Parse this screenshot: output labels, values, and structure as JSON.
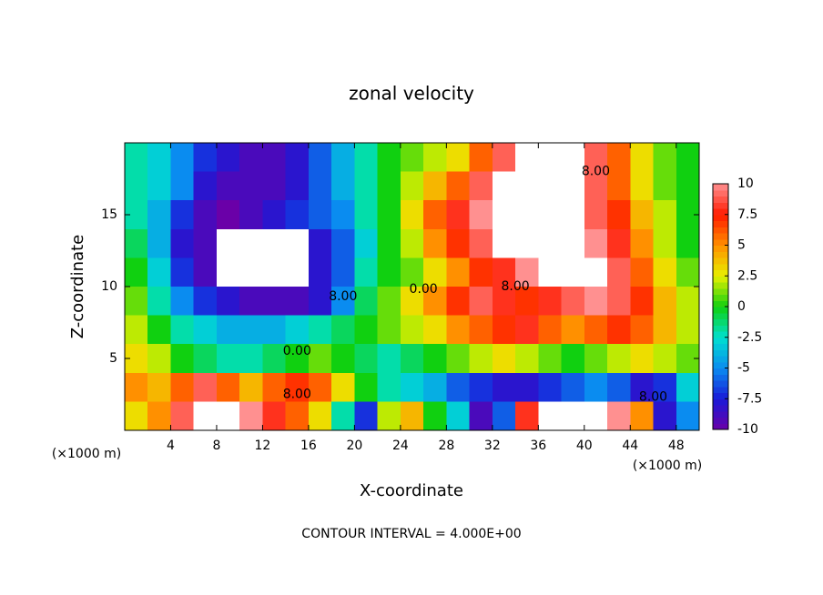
{
  "chart_data": {
    "type": "heatmap",
    "title": "zonal velocity",
    "x_label": "X-coordinate",
    "y_label": "Z-coordinate",
    "x_unit": "(×1000 m)",
    "y_unit": "(×1000 m)",
    "footer": "CONTOUR INTERVAL = 4.000E+00",
    "x": [
      1,
      3,
      5,
      7,
      9,
      11,
      13,
      15,
      17,
      19,
      21,
      23,
      25,
      27,
      29,
      31,
      33,
      35,
      37,
      39,
      41,
      43,
      45,
      47,
      49
    ],
    "y": [
      19,
      17,
      15,
      13,
      11,
      9,
      7,
      5,
      3,
      1
    ],
    "z": [
      [
        -2,
        -3,
        -5,
        -7,
        -8,
        -9,
        -9,
        -8,
        -6,
        -4,
        -2,
        0,
        1,
        2,
        3,
        6,
        9,
        11,
        12,
        11,
        9,
        6,
        3,
        1,
        0
      ],
      [
        -2,
        -3,
        -5,
        -8,
        -9,
        -9,
        -9,
        -8,
        -6,
        -4,
        -2,
        0,
        2,
        4,
        6,
        9,
        11,
        12,
        12,
        11,
        9,
        6,
        3,
        1,
        0
      ],
      [
        -2,
        -4,
        -7,
        -9,
        -10,
        -9,
        -8,
        -7,
        -6,
        -5,
        -2,
        0,
        3,
        6,
        8,
        10,
        12,
        12,
        12,
        11,
        9,
        7,
        4,
        2,
        0
      ],
      [
        -1,
        -4,
        -8,
        -9,
        11,
        12,
        12,
        11,
        -8,
        -6,
        -3,
        0,
        2,
        5,
        7,
        9,
        11,
        12,
        12,
        12,
        10,
        8,
        5,
        2,
        0
      ],
      [
        0,
        -3,
        -7,
        -9,
        12,
        13,
        13,
        12,
        -8,
        -6,
        -2,
        0,
        1,
        3,
        5,
        7,
        8,
        10,
        12,
        12,
        11,
        9,
        6,
        3,
        1
      ],
      [
        1,
        -2,
        -5,
        -7,
        -8,
        -9,
        -9,
        -9,
        -8,
        -5,
        -1,
        1,
        3,
        5,
        7,
        9,
        8,
        7,
        8,
        9,
        10,
        9,
        7,
        4,
        2
      ],
      [
        2,
        0,
        -2,
        -3,
        -4,
        -4,
        -4,
        -3,
        -2,
        -1,
        0,
        1,
        2,
        3,
        5,
        6,
        7,
        8,
        6,
        5,
        6,
        7,
        6,
        4,
        2
      ],
      [
        3,
        2,
        0,
        -1,
        -2,
        -2,
        -1,
        0,
        1,
        0,
        -1,
        -2,
        -1,
        0,
        1,
        2,
        3,
        2,
        1,
        0,
        1,
        2,
        3,
        2,
        1
      ],
      [
        5,
        4,
        6,
        9,
        6,
        4,
        6,
        7,
        6,
        3,
        0,
        -2,
        -3,
        -4,
        -6,
        -7,
        -8,
        -8,
        -7,
        -6,
        -5,
        -6,
        -8,
        -7,
        -3
      ],
      [
        3,
        5,
        9,
        12,
        12,
        10,
        8,
        6,
        3,
        -2,
        -7,
        2,
        4,
        0,
        -3,
        -9,
        -6,
        8,
        12,
        12,
        11,
        10,
        5,
        -8,
        -5
      ]
    ],
    "xlim": [
      0,
      50
    ],
    "xticks": [
      4,
      8,
      12,
      16,
      20,
      24,
      28,
      32,
      36,
      40,
      44,
      48
    ],
    "ylim": [
      0,
      20
    ],
    "yticks": [
      5,
      10,
      15
    ],
    "clim": [
      -10,
      10
    ],
    "cticks": [
      10,
      7.5,
      5,
      2.5,
      0,
      -2.5,
      -5,
      -7.5,
      -10
    ],
    "colorscale": [
      [
        -10,
        "#6a00a8"
      ],
      [
        -7.5,
        "#1a1ad8"
      ],
      [
        -5,
        "#0a8cf0"
      ],
      [
        -2.5,
        "#00e0d0"
      ],
      [
        0,
        "#10d010"
      ],
      [
        2.5,
        "#e8f000"
      ],
      [
        5,
        "#ff9000"
      ],
      [
        7.5,
        "#ff1a00"
      ],
      [
        10,
        "#ff9090"
      ]
    ],
    "above_color": "#ffffff",
    "contour_labels": [
      {
        "text": "8.00",
        "x": 19,
        "y": 9.3
      },
      {
        "text": "0.00",
        "x": 26,
        "y": 9.8
      },
      {
        "text": "8.00",
        "x": 34,
        "y": 10
      },
      {
        "text": "8.00",
        "x": 41,
        "y": 18
      },
      {
        "text": "0.00",
        "x": 15,
        "y": 5.5
      },
      {
        "text": "8.00",
        "x": 15,
        "y": 2.5
      },
      {
        "text": "8.00",
        "x": 46,
        "y": 2.3
      }
    ]
  }
}
